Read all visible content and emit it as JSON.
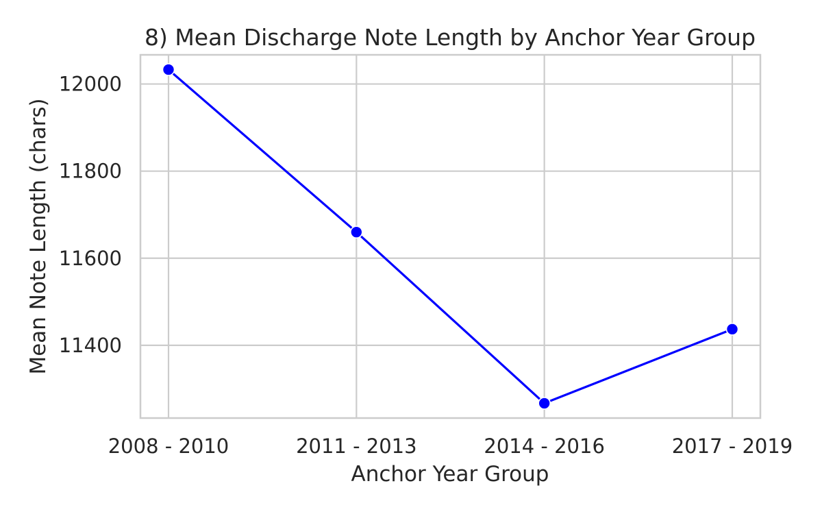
{
  "chart_data": {
    "type": "line",
    "title": "8) Mean Discharge Note Length by Anchor Year Group",
    "xlabel": "Anchor Year Group",
    "ylabel": "Mean Note Length (chars)",
    "categories": [
      "2008 - 2010",
      "2011 - 2013",
      "2014 - 2016",
      "2017 - 2019"
    ],
    "series": [
      {
        "name": "Mean Note Length",
        "values": [
          12033,
          11660,
          11267,
          11437
        ]
      }
    ],
    "ylim": [
      11233,
      12067
    ],
    "yticks": [
      11400,
      11600,
      11800,
      12000
    ],
    "ytick_labels": [
      "11400",
      "11600",
      "11800",
      "12000"
    ],
    "grid": true,
    "marker": "circle",
    "line_color": "#0000ff"
  }
}
